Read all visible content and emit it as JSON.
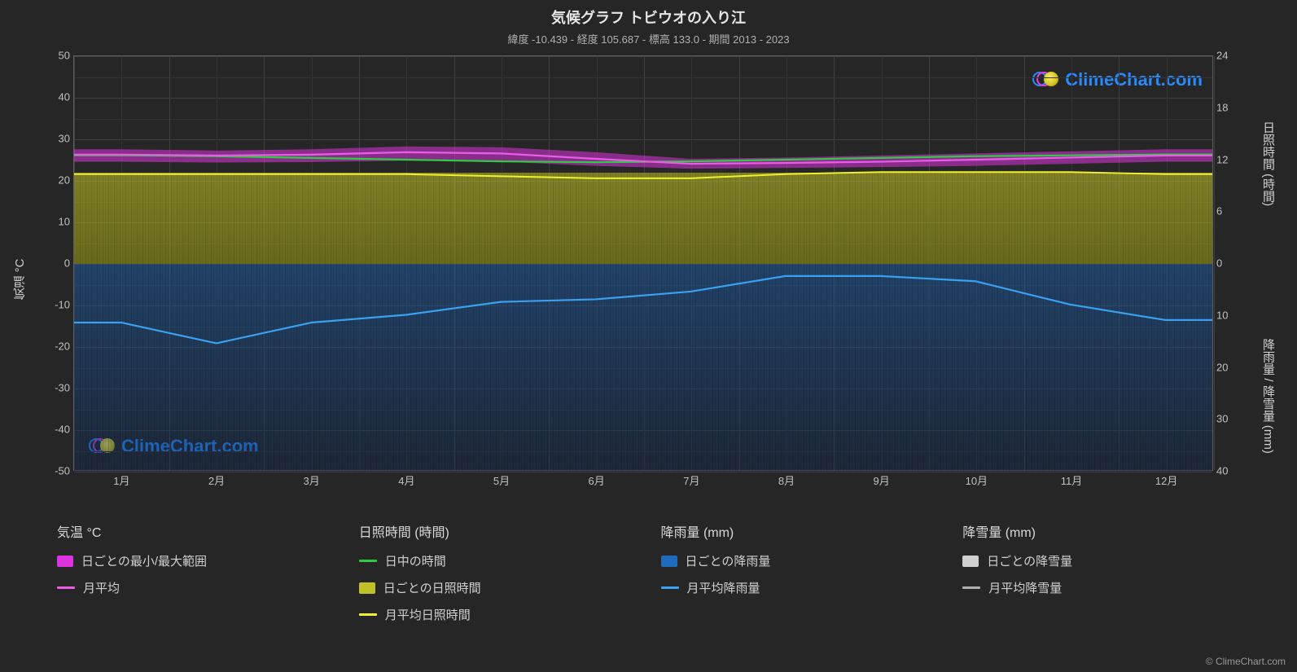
{
  "title": "気候グラフ トビウオの入り江",
  "subtitle": "緯度 -10.439 - 経度 105.687 - 標高 133.0 - 期間 2013 - 2023",
  "axis_labels": {
    "left": "気温 °C",
    "right_top": "日照時間 (時間)",
    "right_bottom": "降雨量 / 降雪量 (mm)"
  },
  "watermark_text": "ClimeChart.com",
  "watermark_color": "#2a8afc",
  "copyright": "© ClimeChart.com",
  "colors": {
    "bg": "#262626",
    "grid": "#404040",
    "temp_range": "#dd33dd",
    "temp_avg_line": "#e85de8",
    "daylight_line": "#2ecc40",
    "sunshine_fill": "#c0c028",
    "sunshine_avg_line": "#f0f030",
    "rain_fill": "#1e6bc0",
    "rain_avg_line": "#3aa0f0",
    "snow_fill": "#d0d0d0",
    "snow_avg_line": "#b0b0b0"
  },
  "chart": {
    "type": "climate-composite",
    "xlim_months": 12,
    "x_tick_labels": [
      "1月",
      "2月",
      "3月",
      "4月",
      "5月",
      "6月",
      "7月",
      "8月",
      "9月",
      "10月",
      "11月",
      "12月"
    ],
    "y_left": {
      "min": -50,
      "max": 50,
      "step": 10,
      "label": "気温 °C"
    },
    "y_right_top": {
      "min": 0,
      "max": 24,
      "step": 6,
      "label": "日照時間 (時間)"
    },
    "y_right_bottom": {
      "min": 0,
      "max": 40,
      "step": 10,
      "label": "降雨量/降雪量 (mm)"
    },
    "temp_avg": [
      26.2,
      26.0,
      26.2,
      26.8,
      26.5,
      25.2,
      24.0,
      24.2,
      24.5,
      25.0,
      25.5,
      26.0
    ],
    "temp_min": [
      24.5,
      24.3,
      24.4,
      24.8,
      24.5,
      23.5,
      22.8,
      23.0,
      23.2,
      23.5,
      24.0,
      24.5
    ],
    "temp_max": [
      27.5,
      27.2,
      27.5,
      28.2,
      28.0,
      26.8,
      25.2,
      25.5,
      26.0,
      26.5,
      27.0,
      27.5
    ],
    "daylight_hours": [
      12.5,
      12.4,
      12.2,
      12.0,
      11.8,
      11.7,
      11.8,
      12.0,
      12.2,
      12.4,
      12.5,
      12.6
    ],
    "sunshine_avg": [
      21.5,
      21.5,
      21.5,
      21.5,
      21.0,
      20.5,
      20.5,
      21.5,
      22.0,
      22.0,
      22.0,
      21.5
    ],
    "sunshine_band_top_temp_equiv": 22.0,
    "rain_avg_mm": [
      11.5,
      15.5,
      11.5,
      10.0,
      7.5,
      7.0,
      5.5,
      2.5,
      2.5,
      3.5,
      8.0,
      11.0
    ],
    "rain_band_bottom_mm": 40
  },
  "legend": {
    "groups": [
      {
        "header": "気温 °C",
        "items": [
          {
            "type": "swatch",
            "color": "#dd33dd",
            "label": "日ごとの最小/最大範囲"
          },
          {
            "type": "line",
            "color": "#e85de8",
            "label": "月平均"
          }
        ]
      },
      {
        "header": "日照時間 (時間)",
        "items": [
          {
            "type": "line",
            "color": "#2ecc40",
            "label": "日中の時間"
          },
          {
            "type": "swatch",
            "color": "#c0c028",
            "label": "日ごとの日照時間"
          },
          {
            "type": "line",
            "color": "#f0f030",
            "label": "月平均日照時間"
          }
        ]
      },
      {
        "header": "降雨量 (mm)",
        "items": [
          {
            "type": "swatch",
            "color": "#1e6bc0",
            "label": "日ごとの降雨量"
          },
          {
            "type": "line",
            "color": "#3aa0f0",
            "label": "月平均降雨量"
          }
        ]
      },
      {
        "header": "降雪量 (mm)",
        "items": [
          {
            "type": "swatch",
            "color": "#d0d0d0",
            "label": "日ごとの降雪量"
          },
          {
            "type": "line",
            "color": "#b0b0b0",
            "label": "月平均降雪量"
          }
        ]
      }
    ]
  }
}
